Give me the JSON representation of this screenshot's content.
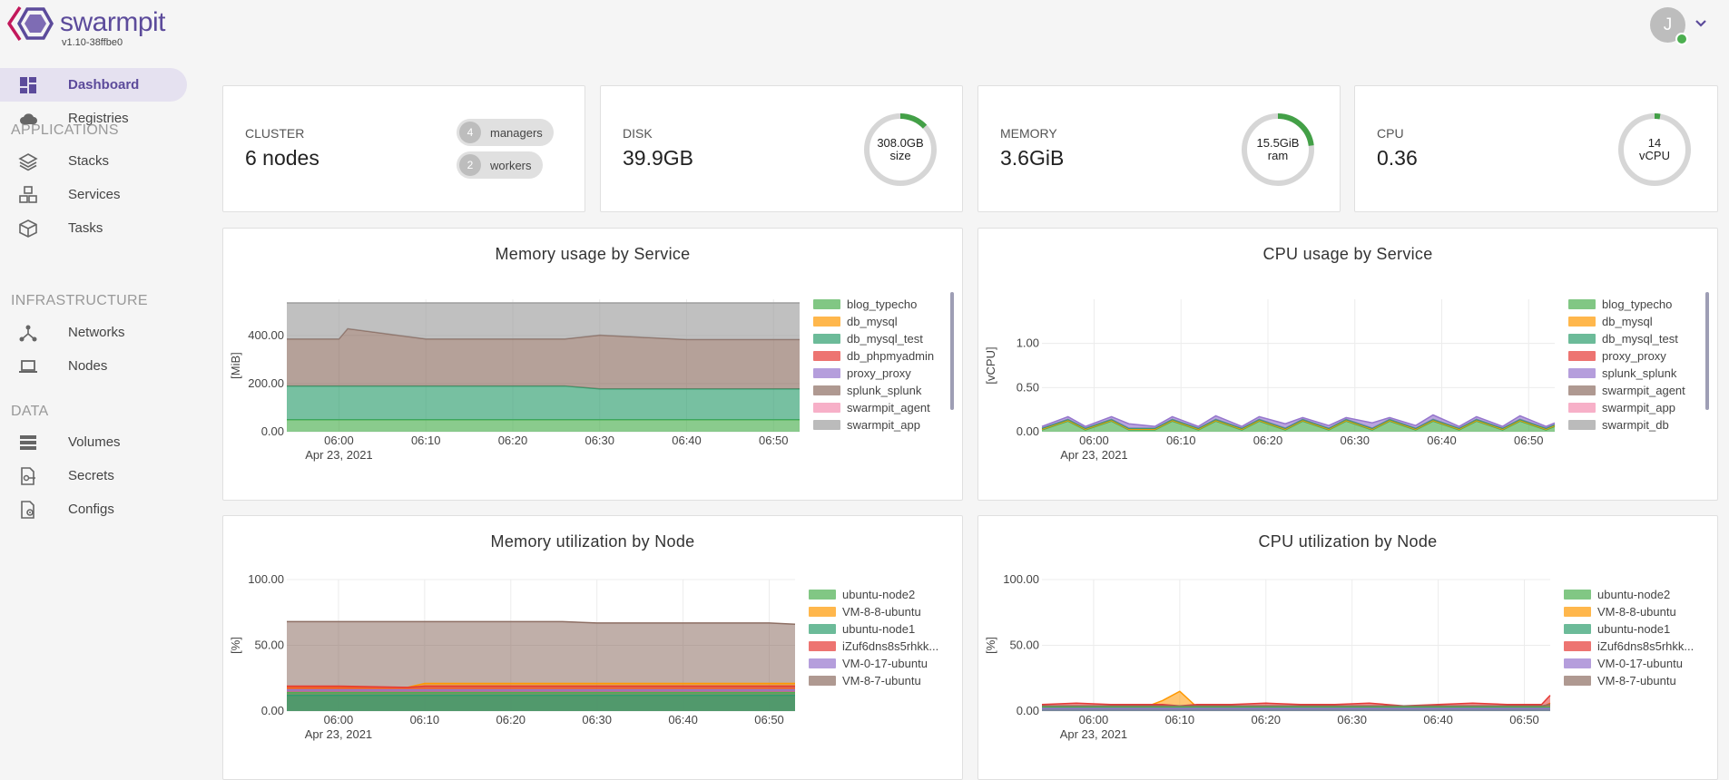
{
  "app": {
    "name": "swarmpit",
    "version": "v1.10-38ffbe0",
    "brand_color": "#5c4b9b",
    "user_initial": "J",
    "user_status_color": "#4caf50"
  },
  "sidebar": {
    "items": [
      {
        "label": "Dashboard",
        "icon": "dashboard-icon",
        "active": true
      },
      {
        "label": "Registries",
        "icon": "cloud-icon"
      },
      {
        "label": "Stacks",
        "icon": "layers-icon"
      },
      {
        "label": "Services",
        "icon": "cubes-icon"
      },
      {
        "label": "Tasks",
        "icon": "cube-icon"
      },
      {
        "label": "Networks",
        "icon": "network-icon"
      },
      {
        "label": "Nodes",
        "icon": "laptop-icon"
      },
      {
        "label": "Volumes",
        "icon": "storage-icon"
      },
      {
        "label": "Secrets",
        "icon": "key-doc-icon"
      },
      {
        "label": "Configs",
        "icon": "gear-doc-icon"
      }
    ],
    "sections": [
      "APPLICATIONS",
      "INFRASTRUCTURE",
      "DATA"
    ]
  },
  "stats": {
    "cluster": {
      "label": "CLUSTER",
      "value": "6 nodes",
      "managers_count": "4",
      "managers_label": "managers",
      "workers_count": "2",
      "workers_label": "workers"
    },
    "disk": {
      "label": "DISK",
      "value": "39.9GB",
      "gauge_line1": "308.0GB",
      "gauge_line2": "size",
      "usage_fraction": 0.13
    },
    "memory": {
      "label": "MEMORY",
      "value": "3.6GiB",
      "gauge_line1": "15.5GiB",
      "gauge_line2": "ram",
      "usage_fraction": 0.23
    },
    "cpu": {
      "label": "CPU",
      "value": "0.36",
      "gauge_line1": "14",
      "gauge_line2": "vCPU",
      "usage_fraction": 0.026
    }
  },
  "chart_data": [
    {
      "type": "area",
      "title": "Memory usage by Service",
      "ylabel": "[MiB]",
      "yticks": [
        "0.00",
        "200.00",
        "400.00"
      ],
      "xticks": [
        "06:00",
        "06:10",
        "06:20",
        "06:30",
        "06:40",
        "06:50"
      ],
      "xdate": "Apr 23, 2021",
      "ylim": [
        0,
        550
      ],
      "x": [
        "05:54",
        "06:00",
        "06:01",
        "06:10",
        "06:20",
        "06:26",
        "06:30",
        "06:40",
        "06:50",
        "06:53"
      ],
      "series": [
        {
          "name": "blog_typecho",
          "color": "#4caf50",
          "values": [
            50,
            50,
            50,
            50,
            50,
            50,
            50,
            50,
            50,
            50
          ]
        },
        {
          "name": "db_mysql",
          "color": "#ff9800",
          "values": [
            0,
            0,
            0,
            0,
            0,
            0,
            0,
            0,
            0,
            0
          ]
        },
        {
          "name": "db_mysql_test",
          "color": "#2e9e6e",
          "values": [
            140,
            140,
            140,
            140,
            140,
            140,
            128,
            128,
            128,
            128
          ]
        },
        {
          "name": "db_phpmyadmin",
          "color": "#e53935",
          "values": [
            0,
            0,
            0,
            0,
            0,
            0,
            0,
            0,
            0,
            0
          ]
        },
        {
          "name": "proxy_proxy",
          "color": "#9575cd",
          "values": [
            0,
            0,
            0,
            0,
            0,
            0,
            0,
            0,
            0,
            0
          ]
        },
        {
          "name": "splunk_splunk",
          "color": "#8d6e63",
          "values": [
            195,
            195,
            238,
            195,
            195,
            195,
            223,
            205,
            205,
            205
          ]
        },
        {
          "name": "swarmpit_agent",
          "color": "#f48fb1",
          "values": [
            0,
            0,
            0,
            0,
            0,
            0,
            0,
            0,
            0,
            0
          ]
        },
        {
          "name": "swarmpit_app",
          "color": "#9e9e9e",
          "values": [
            150,
            150,
            107,
            150,
            150,
            150,
            134,
            152,
            152,
            152
          ]
        }
      ]
    },
    {
      "type": "area",
      "title": "CPU usage by Service",
      "ylabel": "[vCPU]",
      "yticks": [
        "0.00",
        "0.50",
        "1.00"
      ],
      "xticks": [
        "06:00",
        "06:10",
        "06:20",
        "06:30",
        "06:40",
        "06:50"
      ],
      "xdate": "Apr 23, 2021",
      "ylim": [
        0,
        1.5
      ],
      "x": [
        "05:54",
        "05:57",
        "05:59",
        "06:02",
        "06:04",
        "06:07",
        "06:09",
        "06:12",
        "06:14",
        "06:17",
        "06:19",
        "06:22",
        "06:24",
        "06:27",
        "06:29",
        "06:32",
        "06:34",
        "06:37",
        "06:39",
        "06:42",
        "06:44",
        "06:47",
        "06:49",
        "06:52",
        "06:53"
      ],
      "series": [
        {
          "name": "blog_typecho",
          "color": "#4caf50",
          "values": [
            0.02,
            0.12,
            0.02,
            0.12,
            0.02,
            0.02,
            0.12,
            0.02,
            0.12,
            0.02,
            0.12,
            0.02,
            0.12,
            0.02,
            0.12,
            0.02,
            0.12,
            0.02,
            0.12,
            0.02,
            0.12,
            0.02,
            0.12,
            0.02,
            0.06
          ]
        },
        {
          "name": "db_mysql",
          "color": "#ff9800",
          "values": [
            0.01,
            0.01,
            0.01,
            0.01,
            0.01,
            0.01,
            0.01,
            0.01,
            0.01,
            0.01,
            0.01,
            0.01,
            0.01,
            0.01,
            0.01,
            0.01,
            0.01,
            0.01,
            0.01,
            0.01,
            0.01,
            0.01,
            0.01,
            0.01,
            0.01
          ]
        },
        {
          "name": "db_mysql_test",
          "color": "#2e9e6e",
          "values": [
            0.01,
            0.01,
            0.01,
            0.01,
            0.01,
            0.01,
            0.01,
            0.01,
            0.01,
            0.01,
            0.01,
            0.01,
            0.01,
            0.01,
            0.01,
            0.01,
            0.01,
            0.01,
            0.01,
            0.01,
            0.01,
            0.01,
            0.01,
            0.01,
            0.01
          ]
        },
        {
          "name": "proxy_proxy",
          "color": "#e53935",
          "values": [
            0,
            0,
            0,
            0,
            0,
            0,
            0,
            0,
            0,
            0,
            0,
            0,
            0,
            0,
            0,
            0,
            0,
            0,
            0,
            0,
            0,
            0,
            0,
            0,
            0
          ]
        },
        {
          "name": "splunk_splunk",
          "color": "#9575cd",
          "values": [
            0.02,
            0.03,
            0.02,
            0.03,
            0.05,
            0.02,
            0.03,
            0.02,
            0.04,
            0.02,
            0.03,
            0.05,
            0.02,
            0.03,
            0.02,
            0.06,
            0.02,
            0.03,
            0.05,
            0.02,
            0.03,
            0.02,
            0.04,
            0.02,
            0.02
          ]
        },
        {
          "name": "swarmpit_agent",
          "color": "#8d6e63",
          "values": [
            0,
            0,
            0,
            0,
            0,
            0,
            0,
            0,
            0,
            0,
            0,
            0,
            0,
            0,
            0,
            0,
            0,
            0,
            0,
            0,
            0,
            0,
            0,
            0,
            0
          ]
        },
        {
          "name": "swarmpit_app",
          "color": "#f48fb1",
          "values": [
            0,
            0,
            0,
            0,
            0,
            0,
            0,
            0,
            0,
            0,
            0,
            0,
            0,
            0,
            0,
            0,
            0,
            0,
            0,
            0,
            0,
            0,
            0,
            0,
            0
          ]
        },
        {
          "name": "swarmpit_db",
          "color": "#9e9e9e",
          "values": [
            0,
            0,
            0,
            0,
            0,
            0,
            0,
            0,
            0,
            0,
            0,
            0,
            0,
            0,
            0,
            0,
            0,
            0,
            0,
            0,
            0,
            0,
            0,
            0,
            0
          ]
        }
      ]
    },
    {
      "type": "area",
      "title": "Memory utilization by Node",
      "ylabel": "[%]",
      "yticks": [
        "0.00",
        "50.00",
        "100.00"
      ],
      "xticks": [
        "06:00",
        "06:10",
        "06:20",
        "06:30",
        "06:40",
        "06:50"
      ],
      "xdate": "Apr 23, 2021",
      "ylim": [
        0,
        100
      ],
      "overlay": true,
      "x": [
        "05:54",
        "06:00",
        "06:08",
        "06:10",
        "06:20",
        "06:26",
        "06:30",
        "06:40",
        "06:50",
        "06:53"
      ],
      "series": [
        {
          "name": "ubuntu-node2",
          "color": "#4caf50",
          "values": [
            14,
            14,
            14,
            14,
            14,
            14,
            14,
            14,
            14,
            14
          ]
        },
        {
          "name": "VM-8-8-ubuntu",
          "color": "#ff9800",
          "values": [
            18,
            18,
            18,
            21,
            21,
            21,
            21,
            21,
            21,
            21
          ]
        },
        {
          "name": "ubuntu-node1",
          "color": "#2e9e6e",
          "values": [
            12,
            12,
            12,
            12,
            12,
            12,
            12,
            12,
            12,
            12
          ]
        },
        {
          "name": "iZuf6dns8s5rhkk...",
          "color": "#e53935",
          "values": [
            19,
            19,
            18,
            19,
            19,
            19,
            19,
            19,
            19,
            19
          ]
        },
        {
          "name": "VM-0-17-ubuntu",
          "color": "#9575cd",
          "values": [
            16,
            16,
            16,
            16,
            16,
            16,
            16,
            16,
            16,
            16
          ]
        },
        {
          "name": "VM-8-7-ubuntu",
          "color": "#8d6e63",
          "values": [
            68,
            68,
            68,
            68,
            68,
            68,
            67,
            67,
            67,
            66
          ]
        }
      ]
    },
    {
      "type": "area",
      "title": "CPU utilization by Node",
      "ylabel": "[%]",
      "yticks": [
        "0.00",
        "50.00",
        "100.00"
      ],
      "xticks": [
        "06:00",
        "06:10",
        "06:20",
        "06:30",
        "06:40",
        "06:50"
      ],
      "xdate": "Apr 23, 2021",
      "ylim": [
        0,
        100
      ],
      "overlay": true,
      "x": [
        "05:54",
        "05:58",
        "06:02",
        "06:06",
        "06:08",
        "06:10",
        "06:12",
        "06:16",
        "06:20",
        "06:24",
        "06:28",
        "06:32",
        "06:36",
        "06:40",
        "06:44",
        "06:48",
        "06:52",
        "06:53"
      ],
      "series": [
        {
          "name": "ubuntu-node2",
          "color": "#4caf50",
          "values": [
            3,
            3,
            3,
            3,
            3,
            3,
            3,
            3,
            3,
            3,
            3,
            3,
            3,
            3,
            3,
            3,
            3,
            3
          ]
        },
        {
          "name": "VM-8-8-ubuntu",
          "color": "#ff9800",
          "values": [
            3,
            3,
            3,
            3,
            8,
            15,
            3,
            3,
            3,
            3,
            3,
            3,
            3,
            3,
            3,
            3,
            3,
            6
          ]
        },
        {
          "name": "ubuntu-node1",
          "color": "#2e9e6e",
          "values": [
            2,
            2,
            2,
            2,
            2,
            2,
            2,
            2,
            2,
            2,
            2,
            2,
            2,
            2,
            2,
            2,
            2,
            2
          ]
        },
        {
          "name": "iZuf6dns8s5rhkk...",
          "color": "#e53935",
          "values": [
            5,
            6,
            5,
            5,
            5,
            4,
            5,
            5,
            6,
            5,
            5,
            6,
            4,
            5,
            6,
            5,
            5,
            12
          ]
        },
        {
          "name": "VM-0-17-ubuntu",
          "color": "#9575cd",
          "values": [
            2,
            2,
            2,
            2,
            2,
            2,
            2,
            2,
            2,
            2,
            2,
            2,
            2,
            2,
            2,
            2,
            2,
            2
          ]
        },
        {
          "name": "VM-8-7-ubuntu",
          "color": "#8d6e63",
          "values": [
            4,
            4,
            4,
            4,
            4,
            4,
            4,
            4,
            4,
            4,
            4,
            4,
            4,
            4,
            4,
            4,
            4,
            5
          ]
        }
      ]
    }
  ]
}
